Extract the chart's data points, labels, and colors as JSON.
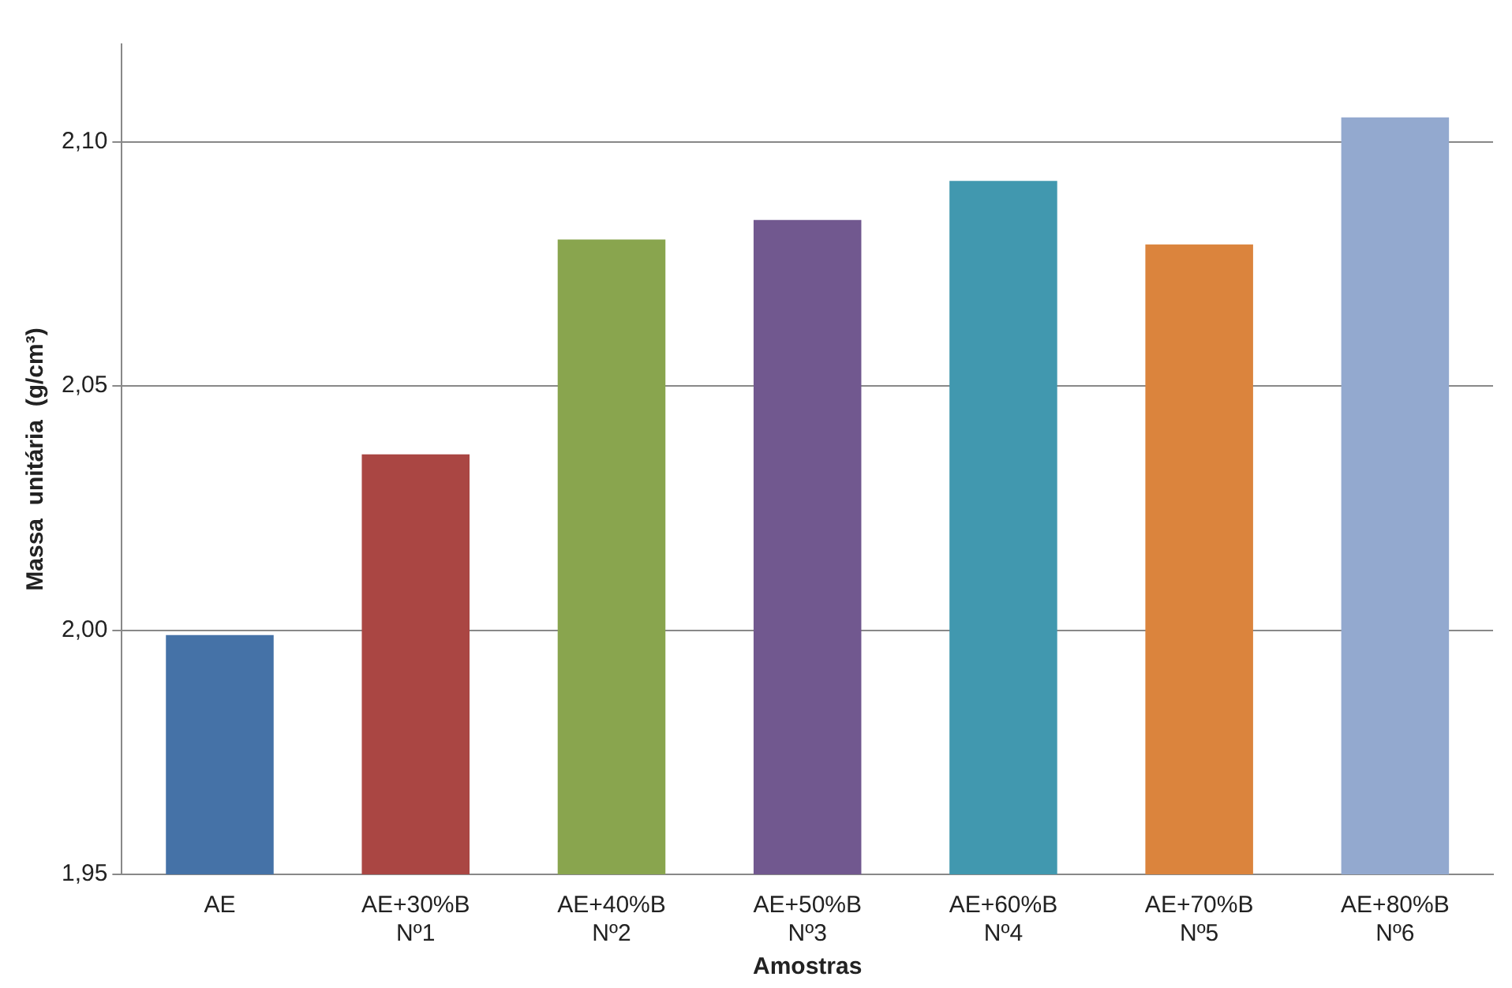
{
  "chart_data": {
    "type": "bar",
    "xlabel": "Amostras",
    "ylabel": "Massa  unitária  (g/cm³)",
    "categories": [
      "AE",
      "AE+30%B\nNº1",
      "AE+40%B\nNº2",
      "AE+50%B\nNº3",
      "AE+60%B\nNº4",
      "AE+70%B\nNº5",
      "AE+80%B\nNº6"
    ],
    "values": [
      1.999,
      2.036,
      2.08,
      2.084,
      2.092,
      2.079,
      2.105
    ],
    "colors": [
      "#4572a7",
      "#aa4643",
      "#89a54e",
      "#71588f",
      "#4198af",
      "#db843d",
      "#93a9cf"
    ],
    "ylim": [
      1.95,
      2.12
    ],
    "yticks": [
      {
        "value": 1.95,
        "label": "1,95"
      },
      {
        "value": 2.0,
        "label": "2,00"
      },
      {
        "value": 2.05,
        "label": "2,05"
      },
      {
        "value": 2.1,
        "label": "2,10"
      }
    ],
    "grid": "y",
    "legend": false
  }
}
